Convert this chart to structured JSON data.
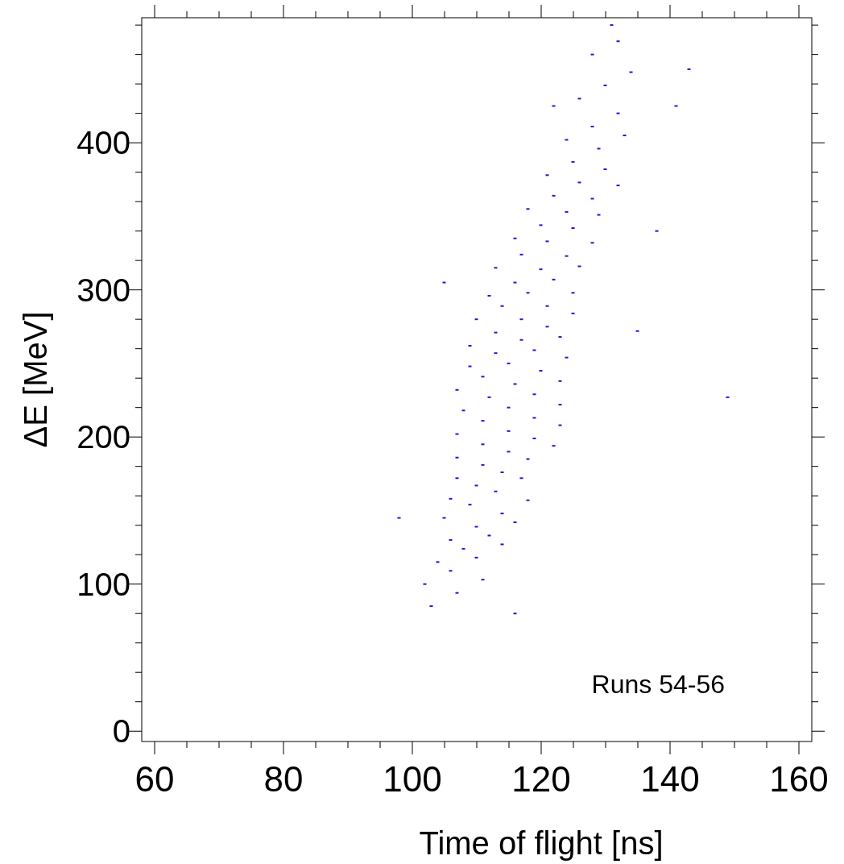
{
  "chart_data": {
    "type": "scatter",
    "xlabel": "Time of flight [ns]",
    "ylabel": "ΔE [MeV]",
    "annotations": [
      "Runs 54-56"
    ],
    "marker": "square",
    "xlim": [
      58,
      162
    ],
    "ylim": [
      -7,
      485
    ],
    "xticks": [
      60,
      {
        "value": 65,
        "label": null
      },
      {
        "value": 70,
        "label": null
      },
      {
        "value": 75,
        "label": null
      },
      80,
      {
        "value": 85,
        "label": null
      },
      {
        "value": 90,
        "label": null
      },
      {
        "value": 95,
        "label": null
      },
      100,
      {
        "value": 105,
        "label": null
      },
      {
        "value": 110,
        "label": null
      },
      {
        "value": 115,
        "label": null
      },
      120,
      {
        "value": 125,
        "label": null
      },
      {
        "value": 130,
        "label": null
      },
      {
        "value": 135,
        "label": null
      },
      140,
      {
        "value": 145,
        "label": null
      },
      {
        "value": 150,
        "label": null
      },
      {
        "value": 155,
        "label": null
      },
      160
    ],
    "yticks": [
      0,
      {
        "value": 20,
        "label": null
      },
      {
        "value": 40,
        "label": null
      },
      {
        "value": 60,
        "label": null
      },
      {
        "value": 80,
        "label": null
      },
      100,
      {
        "value": 120,
        "label": null
      },
      {
        "value": 140,
        "label": null
      },
      {
        "value": 160,
        "label": null
      },
      {
        "value": 180,
        "label": null
      },
      200,
      {
        "value": 220,
        "label": null
      },
      {
        "value": 240,
        "label": null
      },
      {
        "value": 260,
        "label": null
      },
      {
        "value": 280,
        "label": null
      },
      300,
      {
        "value": 320,
        "label": null
      },
      {
        "value": 340,
        "label": null
      },
      {
        "value": 360,
        "label": null
      },
      {
        "value": 380,
        "label": null
      },
      400,
      {
        "value": 420,
        "label": null
      },
      {
        "value": 440,
        "label": null
      },
      {
        "value": 460,
        "label": null
      },
      {
        "value": 480,
        "label": null
      }
    ],
    "series": [
      {
        "color": "#1a1adc",
        "x": [
          103,
          107,
          111,
          102,
          106,
          110,
          114,
          104,
          108,
          112,
          116,
          106,
          110,
          114,
          118,
          105,
          109,
          113,
          117,
          106,
          110,
          114,
          118,
          122,
          107,
          111,
          115,
          119,
          123,
          107,
          111,
          115,
          119,
          123,
          107,
          111,
          115,
          119,
          123,
          108,
          112,
          116,
          120,
          124,
          107,
          111,
          115,
          119,
          123,
          109,
          113,
          117,
          121,
          125,
          109,
          113,
          117,
          121,
          125,
          110,
          114,
          118,
          122,
          126,
          112,
          116,
          120,
          124,
          128,
          113,
          117,
          121,
          125,
          129,
          116,
          120,
          124,
          128,
          132,
          118,
          122,
          126,
          130,
          121,
          125,
          129,
          133,
          124,
          128,
          132,
          126,
          130,
          134,
          128,
          132,
          105,
          141,
          149,
          138,
          135,
          116,
          98,
          143,
          122,
          131
        ],
        "values": [
          85,
          94,
          103,
          100,
          109,
          118,
          127,
          115,
          124,
          133,
          142,
          130,
          139,
          148,
          157,
          145,
          154,
          163,
          172,
          158,
          167,
          176,
          185,
          194,
          172,
          181,
          190,
          199,
          208,
          186,
          195,
          204,
          213,
          222,
          202,
          211,
          220,
          229,
          238,
          218,
          227,
          236,
          245,
          254,
          232,
          241,
          250,
          259,
          268,
          248,
          257,
          266,
          275,
          284,
          262,
          271,
          280,
          289,
          298,
          280,
          289,
          298,
          307,
          316,
          296,
          305,
          314,
          323,
          332,
          315,
          324,
          333,
          342,
          351,
          335,
          344,
          353,
          362,
          371,
          355,
          364,
          373,
          382,
          378,
          387,
          396,
          405,
          402,
          411,
          420,
          430,
          439,
          448,
          460,
          469,
          305,
          425,
          227,
          340,
          272,
          80,
          145,
          450,
          425,
          480
        ]
      }
    ]
  }
}
